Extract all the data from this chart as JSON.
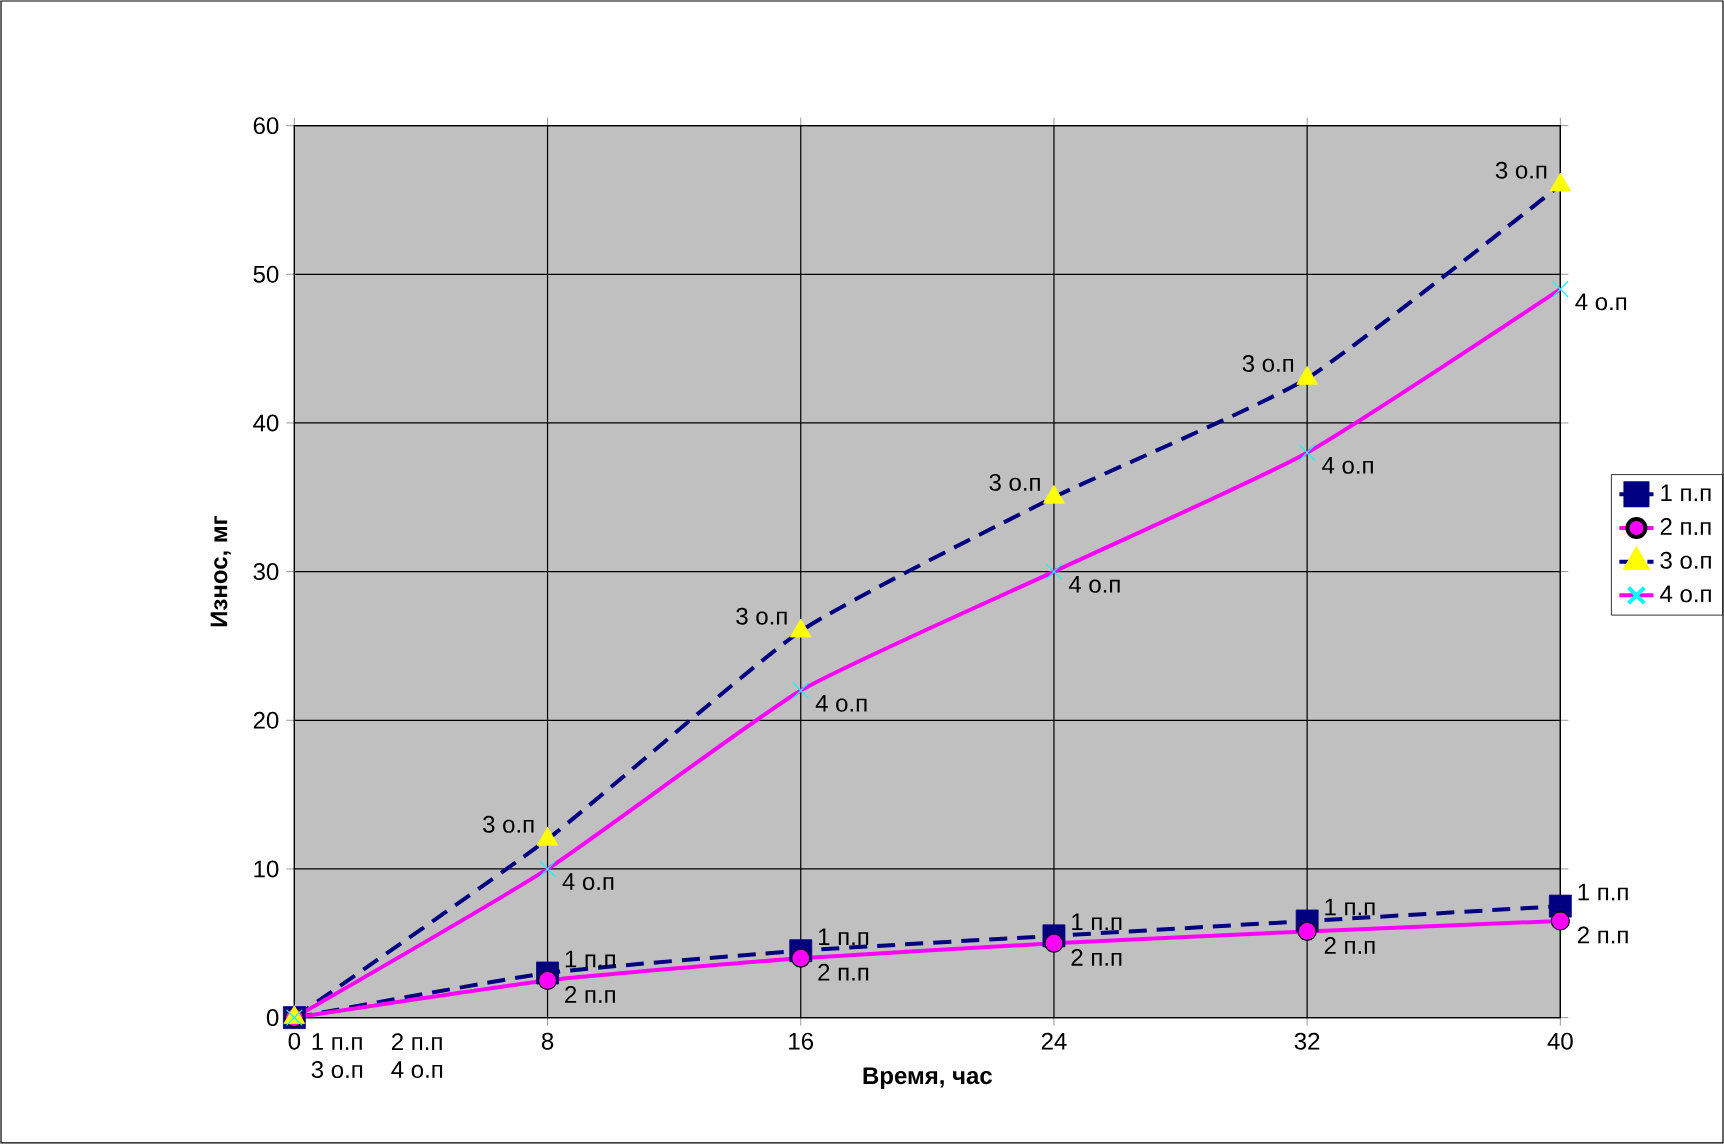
{
  "chart_data": {
    "type": "line",
    "xlabel": "Время, час",
    "ylabel": "Износ, мг",
    "x": [
      0,
      8,
      16,
      24,
      32,
      40
    ],
    "xlim": [
      0,
      40
    ],
    "xticks": [
      0,
      8,
      16,
      24,
      32,
      40
    ],
    "ylim": [
      0,
      60
    ],
    "yticks": [
      0,
      10,
      20,
      30,
      40,
      50,
      60
    ],
    "grid": true,
    "legend": "right",
    "series": [
      {
        "name": "1 п.п",
        "color": "#000080",
        "line_style": "dashed",
        "marker": "square",
        "colors": [
          "#000080",
          "#000080",
          "#000080",
          "#000080",
          "#000080",
          "#000080"
        ],
        "values": [
          0,
          3,
          4.5,
          5.5,
          6.5,
          7.5
        ]
      },
      {
        "name": "2 п.п",
        "color": "#ff00ff",
        "line_style": "solid",
        "marker": "circle",
        "colors": [
          "#ff00ff",
          "#ff00ff",
          "#ff00ff",
          "#ff00ff",
          "#ff00ff",
          "#ff00ff"
        ],
        "values": [
          0,
          2.5,
          4,
          5,
          5.8,
          6.5
        ]
      },
      {
        "name": "3 о.п",
        "color": "#000080",
        "line_style": "dashed",
        "marker": "triangle",
        "colors": [
          "#ffff00",
          "#ffff00",
          "#ffff00",
          "#ffff00",
          "#ffff00",
          "#ffff00"
        ],
        "values": [
          0,
          12,
          26,
          35,
          43,
          56
        ]
      },
      {
        "name": "4 о.п",
        "color": "#ff00ff",
        "line_style": "solid",
        "marker": "cross",
        "colors": [
          "#00ffff",
          "#00ffff",
          "#00ffff",
          "#00ffff",
          "#00ffff",
          "#00ffff"
        ],
        "values": [
          0,
          10,
          22,
          30,
          38,
          49
        ]
      }
    ]
  }
}
